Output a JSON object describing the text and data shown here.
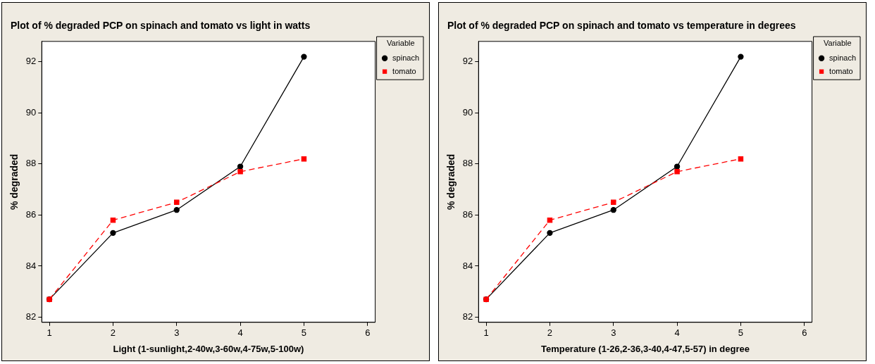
{
  "chart_data": [
    {
      "type": "line",
      "title": "Plot of % degraded PCP on  spinach and tomato vs light in watts",
      "xlabel": "Light (1-sunlight,2-40w,3-60w,4-75w,5-100w)",
      "ylabel": "% degraded",
      "legend_title": "Variable",
      "legend": "top right",
      "grid": false,
      "x": [
        1,
        2,
        3,
        4,
        5
      ],
      "xlim": [
        0.88,
        6.12
      ],
      "xticks": [
        1,
        2,
        3,
        4,
        5,
        6
      ],
      "ylim": [
        81.8,
        92.8
      ],
      "yticks": [
        82,
        84,
        86,
        88,
        90,
        92
      ],
      "series": [
        {
          "name": "spinach",
          "color": "#000000",
          "marker": "circle",
          "line_style": "solid",
          "values": [
            82.7,
            85.3,
            86.2,
            87.9,
            92.2
          ]
        },
        {
          "name": "tomato",
          "color": "#ff0000",
          "marker": "square",
          "line_style": "dashed",
          "values": [
            82.7,
            85.8,
            86.5,
            87.7,
            88.2
          ]
        }
      ]
    },
    {
      "type": "line",
      "title": "Plot of % degraded PCP on  spinach and tomato vs temperature in degrees",
      "xlabel": "Temperature (1-26,2-36,3-40,4-47,5-57) in degree",
      "ylabel": "% degraded",
      "legend_title": "Variable",
      "legend": "top right",
      "grid": false,
      "x": [
        1,
        2,
        3,
        4,
        5
      ],
      "xlim": [
        0.88,
        6.12
      ],
      "xticks": [
        1,
        2,
        3,
        4,
        5,
        6
      ],
      "ylim": [
        81.8,
        92.8
      ],
      "yticks": [
        82,
        84,
        86,
        88,
        90,
        92
      ],
      "series": [
        {
          "name": "spinach",
          "color": "#000000",
          "marker": "circle",
          "line_style": "solid",
          "values": [
            82.7,
            85.3,
            86.2,
            87.9,
            92.2
          ]
        },
        {
          "name": "tomato",
          "color": "#ff0000",
          "marker": "square",
          "line_style": "dashed",
          "values": [
            82.7,
            85.8,
            86.5,
            87.7,
            88.2
          ]
        }
      ]
    }
  ]
}
